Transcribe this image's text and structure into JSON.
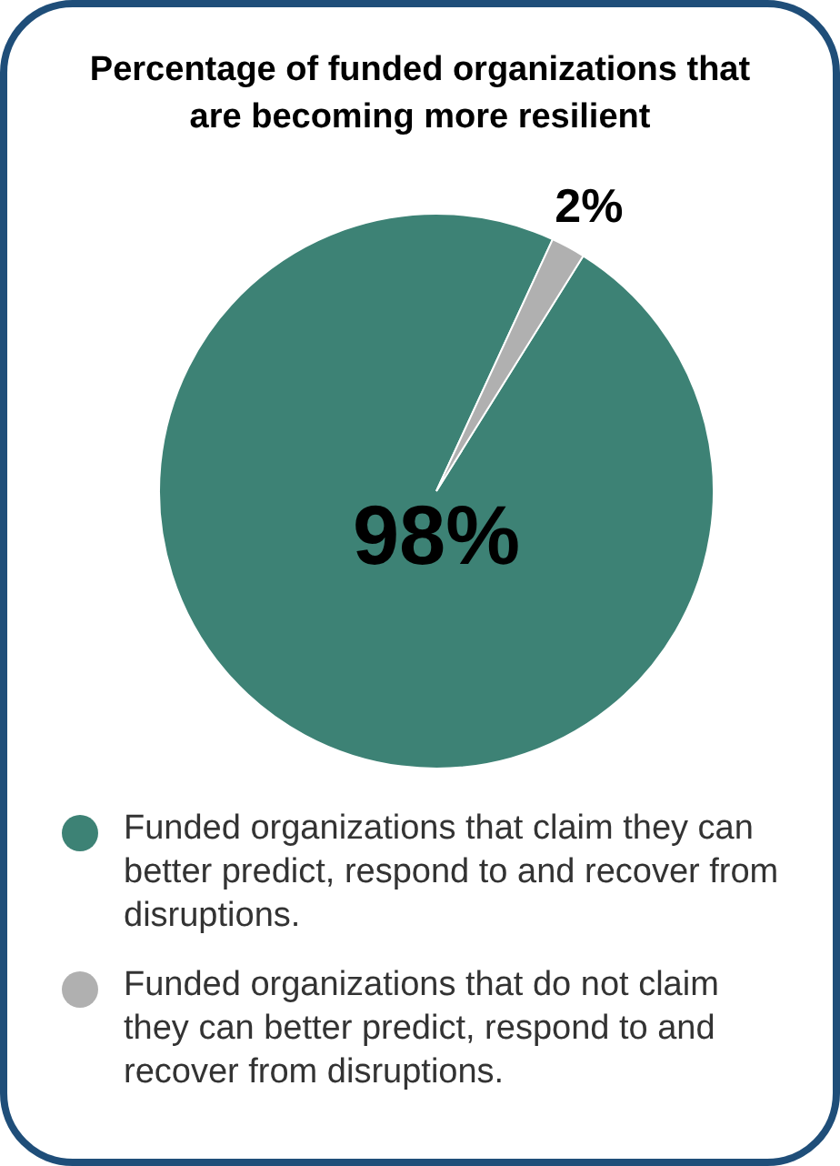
{
  "chart_data": {
    "type": "pie",
    "title": "Percentage of funded organizations that are becoming more resilient",
    "categories": [
      "Funded organizations that claim they can better predict, respond to and recover from disruptions.",
      "Funded organizations that do not claim they can better predict, respond to and recover from disruptions."
    ],
    "values": [
      98,
      2
    ],
    "colors": [
      "#3d8275",
      "#b0b0b0"
    ],
    "value_labels": [
      "98%",
      "2%"
    ],
    "legend": "bottom"
  }
}
